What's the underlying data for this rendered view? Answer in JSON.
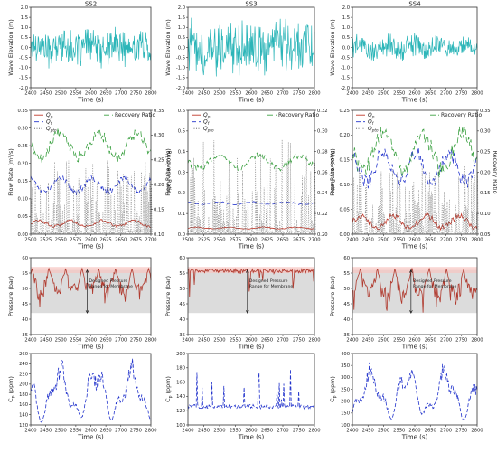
{
  "figure": {
    "panel_titles": [
      "SS2",
      "SS3",
      "SS4"
    ],
    "time_label": "Time (s)"
  },
  "chart_data": [
    {
      "id": "wave_SS2",
      "type": "line",
      "title": "SS2",
      "xlabel": "Time (s)",
      "ylabel": "Wave Elevation (m)",
      "xlim": [
        2400,
        2800
      ],
      "ylim": [
        -2.0,
        2.0
      ],
      "xticks": [
        "2400",
        "2450",
        "2500",
        "2550",
        "2600",
        "2650",
        "2700",
        "2750",
        "2800"
      ],
      "yticks": [
        "-2.0",
        "-1.5",
        "-1.0",
        "-0.5",
        "0.0",
        "0.5",
        "1.0",
        "1.5",
        "2.0"
      ],
      "series": [
        {
          "color": "#2bb5b8",
          "amplitude": 0.8,
          "points": 260
        }
      ]
    },
    {
      "id": "wave_SS3",
      "type": "line",
      "title": "SS3",
      "xlabel": "Time (s)",
      "ylabel": "Wave Elevation (m)",
      "xlim": [
        2400,
        2800
      ],
      "ylim": [
        -2.0,
        2.0
      ],
      "xticks": [
        "2400",
        "2450",
        "2500",
        "2550",
        "2600",
        "2650",
        "2700",
        "2750",
        "2800"
      ],
      "yticks": [
        "-2.0",
        "-1.5",
        "-1.0",
        "-0.5",
        "0.0",
        "0.5",
        "1.0",
        "1.5",
        "2.0"
      ],
      "series": [
        {
          "color": "#2bb5b8",
          "amplitude": 1.3,
          "points": 260
        }
      ]
    },
    {
      "id": "wave_SS4",
      "type": "line",
      "title": "SS4",
      "xlabel": "Time (s)",
      "ylabel": "Wave Elevation (m)",
      "xlim": [
        2400,
        2800
      ],
      "ylim": [
        -2.0,
        2.0
      ],
      "xticks": [
        "2400",
        "2450",
        "2500",
        "2550",
        "2600",
        "2650",
        "2700",
        "2750",
        "2800"
      ],
      "yticks": [
        "-2.0",
        "-1.5",
        "-1.0",
        "-0.5",
        "0.0",
        "0.5",
        "1.0",
        "1.5",
        "2.0"
      ],
      "series": [
        {
          "color": "#2bb5b8",
          "amplitude": 0.55,
          "points": 260
        }
      ]
    },
    {
      "id": "flow_SS2",
      "type": "line",
      "xlabel": "Time (s)",
      "ylabel": "Flow Rate (m³/s)",
      "y2label": "Recovery Ratio",
      "xlim": [
        2500,
        2700
      ],
      "ylim": [
        0.0,
        0.35
      ],
      "y2lim": [
        0.1,
        0.35
      ],
      "xticks": [
        "2500",
        "2525",
        "2550",
        "2575",
        "2600",
        "2625",
        "2650",
        "2675",
        "2700"
      ],
      "yticks": [
        "0.00",
        "0.05",
        "0.10",
        "0.15",
        "0.20",
        "0.25",
        "0.30",
        "0.35"
      ],
      "y2ticks": [
        "0.10",
        "0.15",
        "0.20",
        "0.25",
        "0.30",
        "0.35"
      ],
      "legend_left": [
        "Q_p",
        "Q_f",
        "Q_pto"
      ],
      "legend_right": [
        "Recovery Ratio"
      ],
      "series": [
        {
          "name": "Q_p",
          "color": "#c0392b",
          "dash": "",
          "base": 0.03,
          "amp": 0.008
        },
        {
          "name": "Q_f",
          "color": "#2233cc",
          "dash": "5,3",
          "base": 0.14,
          "amp": 0.02
        },
        {
          "name": "Q_pto",
          "color": "#555555",
          "dash": "1,1.5",
          "base": 0.0,
          "amp": 0.21
        },
        {
          "name": "Recovery Ratio",
          "color": "#3aa040",
          "dash": "6,3",
          "base": 0.28,
          "amp": 0.025
        }
      ]
    },
    {
      "id": "flow_SS3",
      "type": "line",
      "xlabel": "Time (s)",
      "ylabel": "Flow Rate (m³/s)",
      "y2label": "Recovery Ratio",
      "xlim": [
        2500,
        2700
      ],
      "ylim": [
        0.0,
        0.6
      ],
      "y2lim": [
        0.2,
        0.32
      ],
      "xticks": [
        "2500",
        "2525",
        "2550",
        "2575",
        "2600",
        "2625",
        "2650",
        "2675",
        "2700"
      ],
      "yticks": [
        "0.0",
        "0.1",
        "0.2",
        "0.3",
        "0.4",
        "0.5",
        "0.6"
      ],
      "y2ticks": [
        "0.20",
        "0.22",
        "0.24",
        "0.26",
        "0.28",
        "0.30",
        "0.32"
      ],
      "legend_left": [
        "Q_p",
        "Q_f",
        "Q_pto"
      ],
      "legend_right": [
        "Recovery Ratio"
      ],
      "series": [
        {
          "name": "Q_p",
          "color": "#c0392b",
          "dash": "",
          "base": 0.03,
          "amp": 0.004
        },
        {
          "name": "Q_f",
          "color": "#2233cc",
          "dash": "5,3",
          "base": 0.15,
          "amp": 0.006
        },
        {
          "name": "Q_pto",
          "color": "#555555",
          "dash": "1,1.5",
          "base": 0.0,
          "amp": 0.46
        },
        {
          "name": "Recovery Ratio",
          "color": "#3aa040",
          "dash": "6,3",
          "base": 0.27,
          "amp": 0.006
        }
      ]
    },
    {
      "id": "flow_SS4",
      "type": "line",
      "xlabel": "Time (s)",
      "ylabel": "Flow Rate (m³/s)",
      "y2label": "Recovery Ratio",
      "xlim": [
        2400,
        2800
      ],
      "ylim": [
        0.0,
        0.25
      ],
      "y2lim": [
        0.05,
        0.35
      ],
      "xticks": [
        "2400",
        "2450",
        "2500",
        "2550",
        "2600",
        "2650",
        "2700",
        "2750",
        "2800"
      ],
      "yticks": [
        "0.00",
        "0.05",
        "0.10",
        "0.15",
        "0.20",
        "0.25"
      ],
      "y2ticks": [
        "0.05",
        "0.10",
        "0.15",
        "0.20",
        "0.25",
        "0.30",
        "0.35"
      ],
      "legend_left": [
        "Q_p",
        "Q_f",
        "Q_pto"
      ],
      "legend_right": [
        "Recovery Ratio"
      ],
      "series": [
        {
          "name": "Q_p",
          "color": "#c0392b",
          "dash": "",
          "base": 0.025,
          "amp": 0.012
        },
        {
          "name": "Q_f",
          "color": "#2233cc",
          "dash": "5,3",
          "base": 0.135,
          "amp": 0.03
        },
        {
          "name": "Q_pto",
          "color": "#555555",
          "dash": "1,1.5",
          "base": 0.0,
          "amp": 0.14
        },
        {
          "name": "Recovery Ratio",
          "color": "#3aa040",
          "dash": "6,3",
          "base": 0.25,
          "amp": 0.045
        }
      ]
    },
    {
      "id": "pressure_SS2",
      "type": "line",
      "xlabel": "Time (s)",
      "ylabel": "Pressure (bar)",
      "xlim": [
        2400,
        2800
      ],
      "ylim": [
        35,
        60
      ],
      "xticks": [
        "2400",
        "2450",
        "2500",
        "2550",
        "2600",
        "2650",
        "2700",
        "2750",
        "2800"
      ],
      "yticks": [
        "35",
        "40",
        "45",
        "50",
        "55",
        "60"
      ],
      "band": [
        42,
        56
      ],
      "annotation": "Designed Pressure Range for Membrane",
      "series": [
        {
          "color": "#b03a2e",
          "low": 42,
          "high": 56.5
        }
      ]
    },
    {
      "id": "pressure_SS3",
      "type": "line",
      "xlabel": "Time (s)",
      "ylabel": "Pressure (bar)",
      "xlim": [
        2400,
        2800
      ],
      "ylim": [
        35,
        60
      ],
      "xticks": [
        "2400",
        "2450",
        "2500",
        "2550",
        "2600",
        "2650",
        "2700",
        "2750",
        "2800"
      ],
      "yticks": [
        "35",
        "40",
        "45",
        "50",
        "55",
        "60"
      ],
      "band": [
        42,
        56
      ],
      "annotation": "Designed Pressure Range for Membrane",
      "series": [
        {
          "color": "#b03a2e",
          "low": 47,
          "high": 56.3
        }
      ]
    },
    {
      "id": "pressure_SS4",
      "type": "line",
      "xlabel": "Time (s)",
      "ylabel": "Pressure (bar)",
      "xlim": [
        2400,
        2800
      ],
      "ylim": [
        35,
        60
      ],
      "xticks": [
        "2400",
        "2450",
        "2500",
        "2550",
        "2600",
        "2650",
        "2700",
        "2750",
        "2800"
      ],
      "yticks": [
        "35",
        "40",
        "45",
        "50",
        "55",
        "60"
      ],
      "band": [
        42,
        56
      ],
      "annotation": "Designed Pressure Range for Membrane",
      "series": [
        {
          "color": "#b03a2e",
          "low": 39,
          "high": 56.5
        }
      ]
    },
    {
      "id": "cp_SS2",
      "type": "line",
      "xlabel": "Time (s)",
      "ylabel": "C_p (ppm)",
      "xlim": [
        2400,
        2800
      ],
      "ylim": [
        120,
        260
      ],
      "xticks": [
        "2400",
        "2450",
        "2500",
        "2550",
        "2600",
        "2650",
        "2700",
        "2750",
        "2800"
      ],
      "yticks": [
        "120",
        "140",
        "160",
        "180",
        "200",
        "220",
        "240",
        "260"
      ],
      "series": [
        {
          "color": "#2233cc",
          "dash": "4,2",
          "low": 125,
          "high": 255
        }
      ]
    },
    {
      "id": "cp_SS3",
      "type": "line",
      "xlabel": "Time (s)",
      "ylabel": "C_p (ppm)",
      "xlim": [
        2400,
        2800
      ],
      "ylim": [
        100,
        200
      ],
      "xticks": [
        "2400",
        "2450",
        "2500",
        "2550",
        "2600",
        "2650",
        "2700",
        "2750",
        "2800"
      ],
      "yticks": [
        "100",
        "120",
        "140",
        "160",
        "180",
        "200"
      ],
      "series": [
        {
          "color": "#2233cc",
          "dash": "4,2",
          "low": 121,
          "high": 190
        }
      ]
    },
    {
      "id": "cp_SS4",
      "type": "line",
      "xlabel": "Time (s)",
      "ylabel": "C_p (ppm)",
      "xlim": [
        2400,
        2800
      ],
      "ylim": [
        100,
        400
      ],
      "xticks": [
        "2400",
        "2450",
        "2500",
        "2550",
        "2600",
        "2650",
        "2700",
        "2750",
        "2800"
      ],
      "yticks": [
        "100",
        "150",
        "200",
        "250",
        "300",
        "350",
        "400"
      ],
      "series": [
        {
          "color": "#2233cc",
          "dash": "4,2",
          "low": 120,
          "high": 375
        }
      ]
    }
  ]
}
